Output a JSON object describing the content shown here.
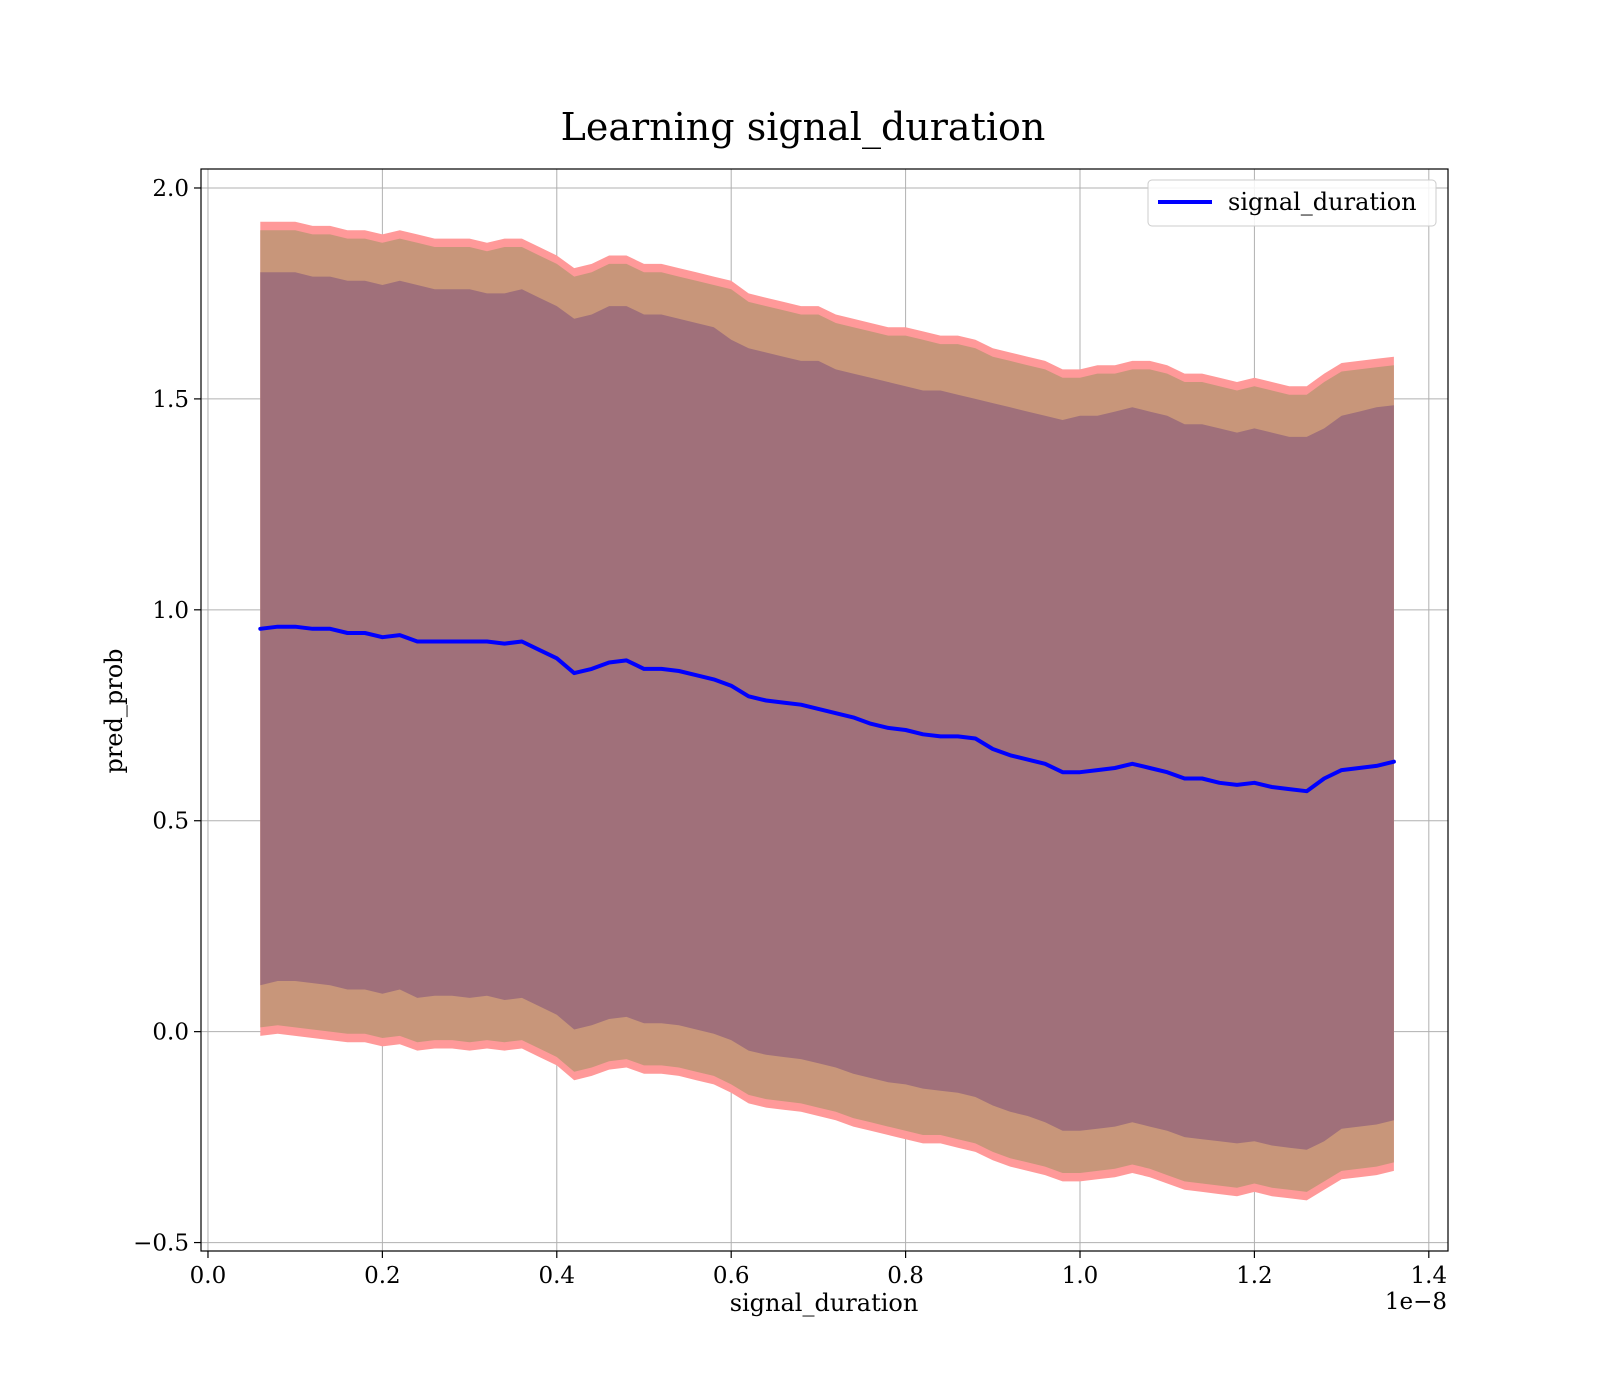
{
  "chart_data": {
    "type": "line",
    "title": "Learning signal_duration",
    "xlabel": "signal_duration",
    "ylabel": "pred_prob",
    "x_offset_label": "1e−8",
    "xlim": [
      -0.008,
      1.422
    ],
    "ylim": [
      -0.52,
      2.045
    ],
    "x_ticks": [
      0.0,
      0.2,
      0.4,
      0.6,
      0.8,
      1.0,
      1.2,
      1.4
    ],
    "x_tick_labels": [
      "0.0",
      "0.2",
      "0.4",
      "0.6",
      "0.8",
      "1.0",
      "1.2",
      "1.4"
    ],
    "y_ticks": [
      -0.5,
      0.0,
      0.5,
      1.0,
      1.5,
      2.0
    ],
    "y_tick_labels": [
      "−0.5",
      "0.0",
      "0.5",
      "1.0",
      "1.5",
      "2.0"
    ],
    "grid": true,
    "legend_position": "top-right",
    "colors": {
      "line": "#0000ff",
      "band_outer": "#ff9999",
      "band_middle": "#c8967a",
      "band_inner": "#a0707a"
    },
    "x": [
      0.06,
      0.08,
      0.1,
      0.12,
      0.14,
      0.16,
      0.18,
      0.2,
      0.22,
      0.24,
      0.26,
      0.28,
      0.3,
      0.32,
      0.34,
      0.36,
      0.38,
      0.4,
      0.42,
      0.44,
      0.46,
      0.48,
      0.5,
      0.52,
      0.54,
      0.56,
      0.58,
      0.6,
      0.62,
      0.64,
      0.66,
      0.68,
      0.7,
      0.72,
      0.74,
      0.76,
      0.78,
      0.8,
      0.82,
      0.84,
      0.86,
      0.88,
      0.9,
      0.92,
      0.94,
      0.96,
      0.98,
      1.0,
      1.02,
      1.04,
      1.06,
      1.08,
      1.1,
      1.12,
      1.14,
      1.16,
      1.18,
      1.2,
      1.22,
      1.24,
      1.26,
      1.28,
      1.3,
      1.32,
      1.34,
      1.36
    ],
    "series": [
      {
        "name": "signal_duration",
        "values": [
          0.955,
          0.96,
          0.96,
          0.955,
          0.955,
          0.945,
          0.945,
          0.935,
          0.94,
          0.925,
          0.925,
          0.925,
          0.925,
          0.925,
          0.92,
          0.925,
          0.905,
          0.885,
          0.85,
          0.86,
          0.875,
          0.88,
          0.86,
          0.86,
          0.855,
          0.845,
          0.835,
          0.82,
          0.795,
          0.785,
          0.78,
          0.775,
          0.765,
          0.755,
          0.745,
          0.73,
          0.72,
          0.715,
          0.705,
          0.7,
          0.7,
          0.695,
          0.67,
          0.655,
          0.645,
          0.635,
          0.615,
          0.615,
          0.62,
          0.625,
          0.635,
          0.625,
          0.615,
          0.6,
          0.6,
          0.59,
          0.585,
          0.59,
          0.58,
          0.575,
          0.57,
          0.6,
          0.62,
          0.625,
          0.63,
          0.64
        ]
      }
    ],
    "band_inner_upper": [
      1.8,
      1.8,
      1.8,
      1.79,
      1.79,
      1.78,
      1.78,
      1.77,
      1.78,
      1.77,
      1.76,
      1.76,
      1.76,
      1.75,
      1.75,
      1.76,
      1.74,
      1.72,
      1.69,
      1.7,
      1.72,
      1.72,
      1.7,
      1.7,
      1.69,
      1.68,
      1.67,
      1.64,
      1.62,
      1.61,
      1.6,
      1.59,
      1.59,
      1.57,
      1.56,
      1.55,
      1.54,
      1.53,
      1.52,
      1.52,
      1.51,
      1.5,
      1.49,
      1.48,
      1.47,
      1.46,
      1.45,
      1.46,
      1.46,
      1.47,
      1.48,
      1.47,
      1.46,
      1.44,
      1.44,
      1.43,
      1.42,
      1.43,
      1.42,
      1.41,
      1.41,
      1.43,
      1.46,
      1.47,
      1.48,
      1.485
    ],
    "band_inner_lower": [
      0.11,
      0.12,
      0.12,
      0.115,
      0.11,
      0.1,
      0.1,
      0.09,
      0.1,
      0.08,
      0.085,
      0.085,
      0.08,
      0.085,
      0.075,
      0.08,
      0.06,
      0.04,
      0.005,
      0.015,
      0.03,
      0.035,
      0.02,
      0.02,
      0.015,
      0.005,
      -0.005,
      -0.02,
      -0.045,
      -0.055,
      -0.06,
      -0.065,
      -0.075,
      -0.085,
      -0.1,
      -0.11,
      -0.12,
      -0.125,
      -0.135,
      -0.14,
      -0.145,
      -0.155,
      -0.175,
      -0.19,
      -0.2,
      -0.215,
      -0.235,
      -0.235,
      -0.23,
      -0.225,
      -0.215,
      -0.225,
      -0.235,
      -0.25,
      -0.255,
      -0.26,
      -0.265,
      -0.26,
      -0.27,
      -0.275,
      -0.28,
      -0.26,
      -0.23,
      -0.225,
      -0.22,
      -0.21
    ],
    "band_middle_upper": [
      1.9,
      1.9,
      1.9,
      1.89,
      1.89,
      1.88,
      1.88,
      1.87,
      1.88,
      1.87,
      1.86,
      1.86,
      1.86,
      1.85,
      1.86,
      1.86,
      1.84,
      1.82,
      1.79,
      1.8,
      1.82,
      1.82,
      1.8,
      1.8,
      1.79,
      1.78,
      1.77,
      1.76,
      1.73,
      1.72,
      1.71,
      1.7,
      1.7,
      1.68,
      1.67,
      1.66,
      1.65,
      1.65,
      1.64,
      1.63,
      1.63,
      1.62,
      1.6,
      1.59,
      1.58,
      1.57,
      1.55,
      1.55,
      1.56,
      1.56,
      1.57,
      1.57,
      1.56,
      1.54,
      1.54,
      1.53,
      1.52,
      1.53,
      1.52,
      1.51,
      1.51,
      1.54,
      1.565,
      1.57,
      1.575,
      1.58
    ],
    "band_middle_lower": [
      0.01,
      0.015,
      0.01,
      0.005,
      0.0,
      -0.005,
      -0.005,
      -0.015,
      -0.01,
      -0.025,
      -0.02,
      -0.02,
      -0.025,
      -0.02,
      -0.025,
      -0.02,
      -0.04,
      -0.06,
      -0.095,
      -0.085,
      -0.07,
      -0.065,
      -0.08,
      -0.08,
      -0.085,
      -0.095,
      -0.105,
      -0.125,
      -0.15,
      -0.16,
      -0.165,
      -0.17,
      -0.18,
      -0.19,
      -0.205,
      -0.215,
      -0.225,
      -0.235,
      -0.245,
      -0.245,
      -0.255,
      -0.265,
      -0.285,
      -0.3,
      -0.31,
      -0.32,
      -0.335,
      -0.335,
      -0.33,
      -0.325,
      -0.315,
      -0.325,
      -0.34,
      -0.355,
      -0.36,
      -0.365,
      -0.37,
      -0.36,
      -0.37,
      -0.375,
      -0.38,
      -0.355,
      -0.33,
      -0.325,
      -0.32,
      -0.31
    ],
    "band_outer_upper": [
      1.92,
      1.92,
      1.92,
      1.91,
      1.91,
      1.9,
      1.9,
      1.89,
      1.9,
      1.89,
      1.88,
      1.88,
      1.88,
      1.87,
      1.88,
      1.88,
      1.86,
      1.84,
      1.81,
      1.82,
      1.84,
      1.84,
      1.82,
      1.82,
      1.81,
      1.8,
      1.79,
      1.78,
      1.75,
      1.74,
      1.73,
      1.72,
      1.72,
      1.7,
      1.69,
      1.68,
      1.67,
      1.67,
      1.66,
      1.65,
      1.65,
      1.64,
      1.62,
      1.61,
      1.6,
      1.59,
      1.57,
      1.57,
      1.58,
      1.58,
      1.59,
      1.59,
      1.58,
      1.56,
      1.56,
      1.55,
      1.54,
      1.55,
      1.54,
      1.53,
      1.53,
      1.56,
      1.585,
      1.59,
      1.595,
      1.6
    ],
    "band_outer_lower": [
      -0.01,
      -0.005,
      -0.01,
      -0.015,
      -0.02,
      -0.025,
      -0.025,
      -0.035,
      -0.03,
      -0.045,
      -0.04,
      -0.04,
      -0.045,
      -0.04,
      -0.045,
      -0.04,
      -0.06,
      -0.08,
      -0.115,
      -0.105,
      -0.09,
      -0.085,
      -0.1,
      -0.1,
      -0.105,
      -0.115,
      -0.125,
      -0.145,
      -0.17,
      -0.18,
      -0.185,
      -0.19,
      -0.2,
      -0.21,
      -0.225,
      -0.235,
      -0.245,
      -0.255,
      -0.265,
      -0.265,
      -0.275,
      -0.285,
      -0.305,
      -0.32,
      -0.33,
      -0.34,
      -0.355,
      -0.355,
      -0.35,
      -0.345,
      -0.335,
      -0.345,
      -0.36,
      -0.375,
      -0.38,
      -0.385,
      -0.39,
      -0.38,
      -0.39,
      -0.395,
      -0.4,
      -0.375,
      -0.35,
      -0.345,
      -0.34,
      -0.33
    ]
  }
}
